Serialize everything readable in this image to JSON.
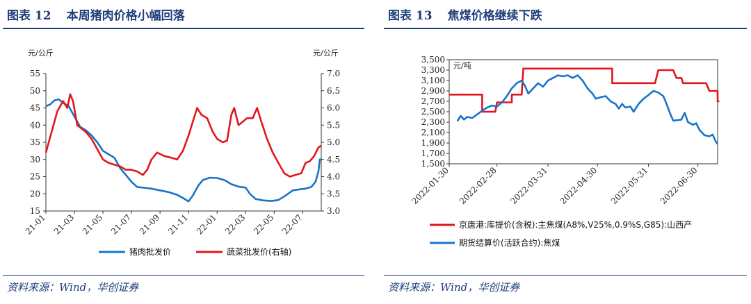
{
  "left": {
    "figure_label": "图表 12",
    "title": "本周猪肉价格小幅回落",
    "source": "资料来源：Wind，华创证券"
  },
  "right": {
    "figure_label": "图表 13",
    "title": "焦煤价格继续下跌",
    "source": "资料来源：Wind，华创证券"
  },
  "colors": {
    "blue": "#1874c8",
    "red": "#e3151d",
    "accent": "#1f3d7a"
  },
  "chart_data": [
    {
      "type": "line",
      "title": "本周猪肉价格小幅回落",
      "y_unit_left": "元/公斤",
      "y_unit_right": "元/公斤",
      "x_ticks": [
        "21-01",
        "21-03",
        "21-05",
        "21-07",
        "21-09",
        "21-11",
        "22-01",
        "22-03",
        "22-05",
        "22-07"
      ],
      "x_range": [
        0,
        19.3
      ],
      "ylim_left": [
        15,
        55
      ],
      "yticks_left": [
        "15",
        "20",
        "25",
        "30",
        "35",
        "40",
        "45",
        "50",
        "55"
      ],
      "ylim_right": [
        3.0,
        7.0
      ],
      "yticks_right": [
        "3.0",
        "3.5",
        "4.0",
        "4.5",
        "5.0",
        "5.5",
        "6.0",
        "6.5",
        "7.0"
      ],
      "legend_position": "bottom",
      "series": [
        {
          "name": "猪肉批发价",
          "axis": "left",
          "color": "#1874c8",
          "points": [
            [
              0,
              45.5
            ],
            [
              0.3,
              46
            ],
            [
              0.6,
              47.2
            ],
            [
              0.9,
              47.5
            ],
            [
              1.2,
              46.5
            ],
            [
              1.6,
              45.5
            ],
            [
              2,
              42.5
            ],
            [
              2.4,
              39.5
            ],
            [
              2.8,
              38.5
            ],
            [
              3.2,
              37
            ],
            [
              3.6,
              35
            ],
            [
              4,
              32.5
            ],
            [
              4.4,
              31.5
            ],
            [
              4.8,
              30.5
            ],
            [
              5.2,
              27.5
            ],
            [
              5.6,
              25.5
            ],
            [
              6,
              23.5
            ],
            [
              6.4,
              22
            ],
            [
              6.8,
              21.8
            ],
            [
              7.4,
              21.5
            ],
            [
              8,
              21
            ],
            [
              8.6,
              20.5
            ],
            [
              9.2,
              19.7
            ],
            [
              9.6,
              18.8
            ],
            [
              10,
              17.8
            ],
            [
              10.3,
              19.5
            ],
            [
              10.7,
              22.5
            ],
            [
              11,
              24
            ],
            [
              11.5,
              24.7
            ],
            [
              12,
              24.6
            ],
            [
              12.5,
              24
            ],
            [
              13,
              22.8
            ],
            [
              13.5,
              22.1
            ],
            [
              14,
              21.8
            ],
            [
              14.3,
              20
            ],
            [
              14.7,
              18.5
            ],
            [
              15.2,
              18.1
            ],
            [
              15.8,
              17.9
            ],
            [
              16.3,
              18.2
            ],
            [
              16.8,
              19.5
            ],
            [
              17.3,
              21
            ],
            [
              17.8,
              21.3
            ],
            [
              18.2,
              21.5
            ],
            [
              18.6,
              22
            ],
            [
              18.9,
              23.5
            ],
            [
              19.1,
              26.5
            ],
            [
              19.2,
              30
            ],
            [
              19.3,
              30
            ]
          ]
        },
        {
          "name": "蔬菜批发价(右轴)",
          "axis": "right",
          "color": "#e3151d",
          "points": [
            [
              0,
              4.7
            ],
            [
              0.4,
              5.3
            ],
            [
              0.8,
              5.9
            ],
            [
              1.2,
              6.2
            ],
            [
              1.5,
              6.0
            ],
            [
              1.7,
              6.4
            ],
            [
              1.9,
              6.2
            ],
            [
              2.2,
              5.5
            ],
            [
              2.5,
              5.4
            ],
            [
              2.8,
              5.3
            ],
            [
              3.2,
              5.1
            ],
            [
              3.6,
              4.8
            ],
            [
              4,
              4.5
            ],
            [
              4.4,
              4.4
            ],
            [
              4.8,
              4.35
            ],
            [
              5.2,
              4.3
            ],
            [
              5.6,
              4.2
            ],
            [
              6,
              4.2
            ],
            [
              6.4,
              4.15
            ],
            [
              6.8,
              4.05
            ],
            [
              7.1,
              4.2
            ],
            [
              7.4,
              4.5
            ],
            [
              7.8,
              4.7
            ],
            [
              8.3,
              4.6
            ],
            [
              8.8,
              4.55
            ],
            [
              9.2,
              4.5
            ],
            [
              9.6,
              4.75
            ],
            [
              10,
              5.2
            ],
            [
              10.3,
              5.6
            ],
            [
              10.6,
              6.0
            ],
            [
              10.9,
              5.8
            ],
            [
              11.3,
              5.7
            ],
            [
              11.7,
              5.3
            ],
            [
              12,
              5.1
            ],
            [
              12.4,
              5.0
            ],
            [
              12.7,
              5.05
            ],
            [
              13,
              5.8
            ],
            [
              13.2,
              6.0
            ],
            [
              13.5,
              5.5
            ],
            [
              13.8,
              5.6
            ],
            [
              14.1,
              5.7
            ],
            [
              14.5,
              5.7
            ],
            [
              14.8,
              6.0
            ],
            [
              15.1,
              5.6
            ],
            [
              15.5,
              5.1
            ],
            [
              15.9,
              4.7
            ],
            [
              16.3,
              4.4
            ],
            [
              16.7,
              4.1
            ],
            [
              17.1,
              4.0
            ],
            [
              17.5,
              4.05
            ],
            [
              17.9,
              4.1
            ],
            [
              18.2,
              4.4
            ],
            [
              18.5,
              4.45
            ],
            [
              18.8,
              4.6
            ],
            [
              19.1,
              4.85
            ],
            [
              19.3,
              4.9
            ]
          ]
        }
      ]
    },
    {
      "type": "line",
      "title": "焦煤价格继续下跌",
      "y_unit": "元/吨",
      "x_ticks": [
        "2022-01-30",
        "2022-02-28",
        "2022-03-31",
        "2022-04-30",
        "2022-05-31",
        "2022-06-30"
      ],
      "x_range": [
        0,
        163
      ],
      "ylim": [
        1500,
        3500
      ],
      "yticks": [
        "1,500",
        "1,700",
        "1,900",
        "2,100",
        "2,300",
        "2,500",
        "2,700",
        "2,900",
        "3,100",
        "3,300",
        "3,500"
      ],
      "legend_position": "bottom",
      "series": [
        {
          "name": "京唐港:库提价(含税):主焦煤(A8%,V25%,0.9%S,G85):山西产",
          "color": "#e3151d",
          "points": [
            [
              0,
              2830
            ],
            [
              20,
              2830
            ],
            [
              20,
              2500
            ],
            [
              28,
              2500
            ],
            [
              29,
              2680
            ],
            [
              38,
              2680
            ],
            [
              38,
              2830
            ],
            [
              44,
              2830
            ],
            [
              45,
              3330
            ],
            [
              99,
              3330
            ],
            [
              99,
              3050
            ],
            [
              125,
              3050
            ],
            [
              127,
              3300
            ],
            [
              136,
              3300
            ],
            [
              138,
              3150
            ],
            [
              141,
              3150
            ],
            [
              142,
              3050
            ],
            [
              156,
              3050
            ],
            [
              158,
              2900
            ],
            [
              163,
              2900
            ],
            [
              163,
              2700
            ],
            [
              164,
              2700
            ]
          ]
        },
        {
          "name": "期货结算价(活跃合约):焦煤",
          "color": "#1874c8",
          "points": [
            [
              5,
              2320
            ],
            [
              7,
              2420
            ],
            [
              9,
              2350
            ],
            [
              11,
              2400
            ],
            [
              14,
              2380
            ],
            [
              17,
              2450
            ],
            [
              20,
              2520
            ],
            [
              23,
              2580
            ],
            [
              26,
              2620
            ],
            [
              29,
              2600
            ],
            [
              32,
              2680
            ],
            [
              35,
              2800
            ],
            [
              38,
              2950
            ],
            [
              41,
              3050
            ],
            [
              44,
              3100
            ],
            [
              46,
              3000
            ],
            [
              48,
              2850
            ],
            [
              51,
              2950
            ],
            [
              54,
              3050
            ],
            [
              57,
              2980
            ],
            [
              60,
              3100
            ],
            [
              63,
              3150
            ],
            [
              66,
              3200
            ],
            [
              69,
              3180
            ],
            [
              72,
              3200
            ],
            [
              75,
              3150
            ],
            [
              78,
              3200
            ],
            [
              81,
              3100
            ],
            [
              84,
              2950
            ],
            [
              87,
              2850
            ],
            [
              89,
              2750
            ],
            [
              92,
              2780
            ],
            [
              95,
              2800
            ],
            [
              98,
              2700
            ],
            [
              101,
              2650
            ],
            [
              103,
              2560
            ],
            [
              105,
              2650
            ],
            [
              107,
              2580
            ],
            [
              110,
              2600
            ],
            [
              112,
              2500
            ],
            [
              115,
              2650
            ],
            [
              118,
              2750
            ],
            [
              121,
              2820
            ],
            [
              124,
              2900
            ],
            [
              127,
              2870
            ],
            [
              130,
              2800
            ],
            [
              132,
              2650
            ],
            [
              134,
              2480
            ],
            [
              136,
              2330
            ],
            [
              139,
              2340
            ],
            [
              141,
              2350
            ],
            [
              143,
              2480
            ],
            [
              145,
              2300
            ],
            [
              148,
              2250
            ],
            [
              150,
              2280
            ],
            [
              152,
              2150
            ],
            [
              155,
              2050
            ],
            [
              158,
              2030
            ],
            [
              160,
              2060
            ],
            [
              162,
              1920
            ],
            [
              163,
              1880
            ]
          ]
        }
      ]
    }
  ]
}
